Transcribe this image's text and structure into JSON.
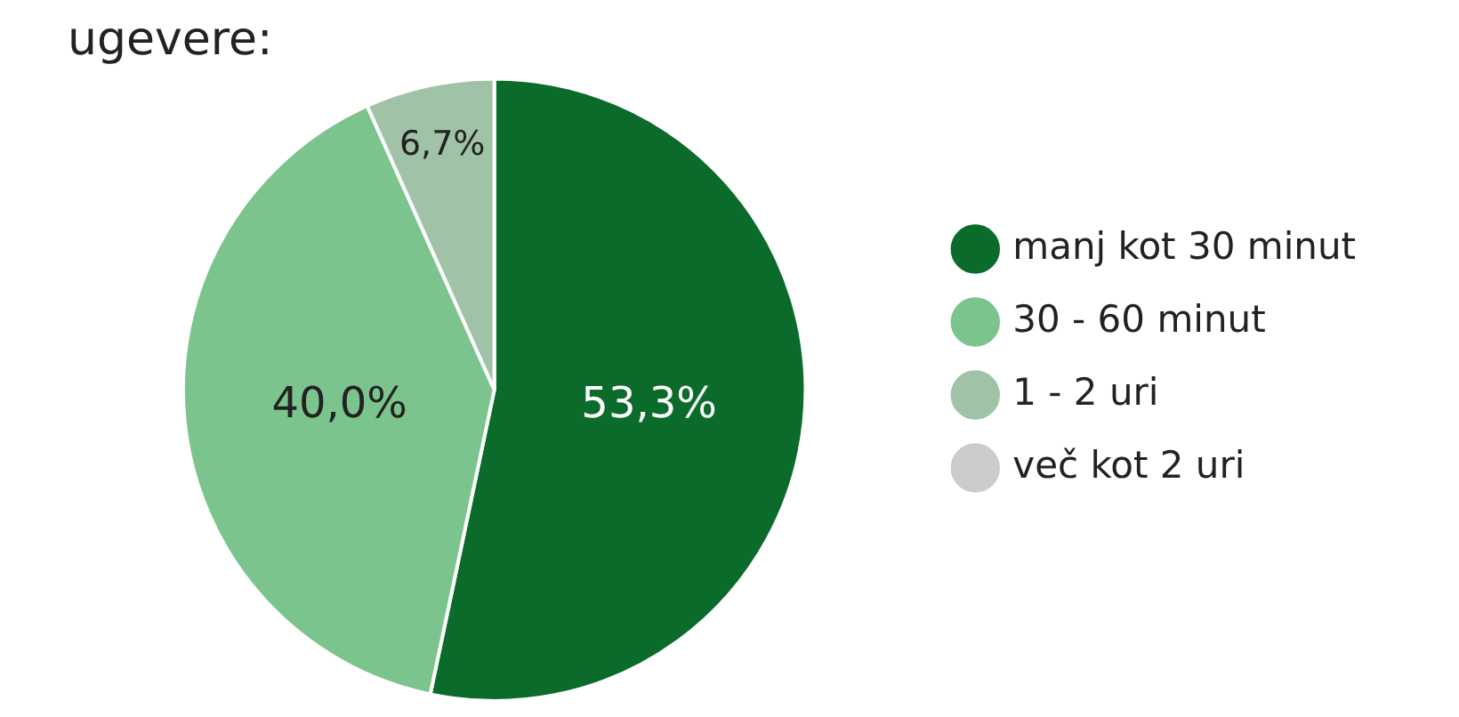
{
  "chart_data": {
    "type": "pie",
    "title": "ugevere:",
    "categories": [
      "manj kot 30 minut",
      "30 - 60 minut",
      "1 - 2 uri",
      "več kot 2 uri"
    ],
    "values": [
      53.3,
      40.0,
      6.7,
      0
    ],
    "colors": [
      "#0b6b2b",
      "#7cc48d",
      "#a0c3a7",
      "#cccccc"
    ],
    "value_labels": [
      "53,3%",
      "40,0%",
      "6,7%",
      null
    ],
    "legend": "right"
  }
}
